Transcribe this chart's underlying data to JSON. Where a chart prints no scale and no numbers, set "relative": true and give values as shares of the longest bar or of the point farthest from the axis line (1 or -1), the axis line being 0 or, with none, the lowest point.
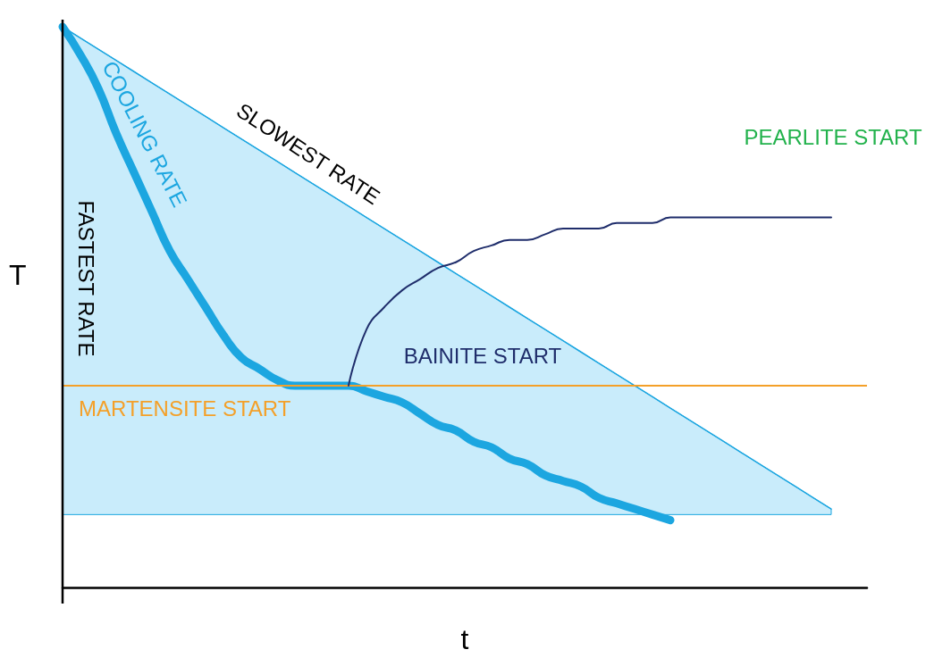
{
  "chart_data": {
    "type": "line",
    "relative": true,
    "xlabel": "t",
    "ylabel": "T",
    "marker": "none",
    "categories": [
      null,
      null,
      null,
      null,
      null,
      null,
      null,
      null,
      null,
      null,
      null,
      null,
      null,
      null,
      null,
      null,
      null,
      null,
      null,
      null,
      null,
      null,
      null,
      null,
      null,
      null,
      null,
      null,
      null,
      null,
      null,
      null,
      null,
      null,
      null,
      null,
      null,
      null,
      null,
      null,
      null,
      null,
      null,
      null,
      null,
      null
    ],
    "series": [
      {
        "color": "#1ca6e0",
        "values": [
          1.0,
          0.98,
          0.96,
          0.94,
          0.92,
          0.9,
          0.88,
          0.86,
          0.84,
          0.82,
          0.8,
          0.78,
          0.76,
          0.74,
          0.72,
          0.7,
          0.68,
          0.66,
          0.64,
          0.62,
          0.6,
          0.58,
          0.56,
          0.54,
          0.52,
          0.5,
          0.48,
          0.46,
          0.44,
          0.42,
          0.4,
          0.38,
          0.36,
          0.34,
          0.32,
          0.3,
          0.28,
          0.26,
          0.24,
          0.22,
          0.2,
          0.18,
          0.16,
          0.14,
          null,
          null
        ],
        "upper": [
          1.0,
          0.98,
          0.96,
          0.94,
          0.92,
          0.9,
          0.88,
          0.86,
          0.84,
          0.82,
          0.8,
          0.78,
          0.76,
          0.74,
          0.72,
          0.7,
          0.68,
          0.66,
          0.64,
          0.62,
          0.6,
          0.58,
          0.56,
          0.54,
          0.52,
          0.5,
          0.48,
          0.46,
          0.44,
          0.42,
          0.4,
          0.38,
          0.36,
          0.34,
          0.32,
          0.3,
          0.28,
          0.26,
          0.24,
          0.22,
          0.2,
          0.18,
          0.16,
          0.14,
          null,
          null
        ],
        "lower": [
          0.13,
          0.13,
          0.13,
          0.13,
          0.13,
          0.13,
          0.13,
          0.13,
          0.13,
          0.13,
          0.13,
          0.13,
          0.13,
          0.13,
          0.13,
          0.13,
          0.13,
          0.13,
          0.13,
          0.13,
          0.13,
          0.13,
          0.13,
          0.13,
          0.13,
          0.13,
          0.13,
          0.13,
          0.13,
          0.13,
          0.13,
          0.13,
          0.13,
          0.13,
          0.13,
          0.13,
          0.13,
          0.13,
          0.13,
          0.13,
          0.13,
          0.13,
          0.13,
          0.13,
          null,
          null
        ]
      },
      {
        "color": "#1ca6e0",
        "values": [
          1.0,
          0.95,
          0.89,
          0.81,
          0.74,
          0.67,
          0.6,
          0.55,
          0.5,
          0.45,
          0.41,
          0.39,
          0.37,
          0.36,
          0.36,
          0.36,
          0.36,
          0.35,
          0.34,
          0.33,
          0.31,
          0.29,
          0.28,
          0.26,
          0.25,
          0.23,
          0.22,
          0.2,
          0.19,
          0.18,
          0.16,
          0.15,
          0.14,
          0.13,
          0.12,
          null,
          null,
          null,
          null,
          null,
          null,
          null,
          null,
          null,
          null,
          null
        ]
      },
      {
        "color": "#1f2d6b",
        "values": [
          null,
          null,
          null,
          null,
          null,
          null,
          null,
          null,
          null,
          null,
          null,
          null,
          null,
          null,
          null,
          null,
          0.36,
          0.46,
          0.5,
          0.53,
          0.55,
          0.57,
          0.58,
          0.6,
          0.61,
          0.62,
          0.62,
          0.63,
          0.64,
          0.64,
          0.64,
          0.65,
          0.65,
          0.65,
          0.66,
          0.66,
          0.66,
          0.66,
          0.66,
          0.66,
          0.66,
          0.66,
          0.66,
          0.66,
          null,
          null
        ]
      }
    ],
    "ref_lines": [
      {
        "axis": "y",
        "value": 0.36,
        "label": "MARTENSITE START",
        "color": "#f4a029"
      }
    ],
    "annotations": [
      "SLOWEST RATE",
      "COOLING RATE",
      "FASTEST RATE",
      "BAINITE START",
      "PEARLITE START"
    ]
  }
}
